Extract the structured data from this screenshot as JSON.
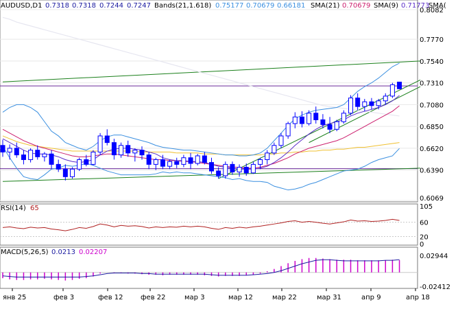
{
  "header": {
    "symbol": "AUDUSD,D1",
    "ohlc": [
      "0.7318",
      "0.7318",
      "0.7244",
      "0.7247"
    ],
    "bands_label": "Bands(21,1.618)",
    "bands_values": [
      "0.75177",
      "0.70679",
      "0.66181"
    ],
    "sma21_label": "SMA(21)",
    "sma21_value": "0.70679",
    "sma9_label": "SMA(9)",
    "sma9_value": "0.71773",
    "sma_extra_label": "SMA("
  },
  "rsi": {
    "label": "RSI(14)",
    "value": "65",
    "levels": [
      "105",
      "60",
      "20",
      "0"
    ]
  },
  "macd": {
    "label": "MACD(5,26,5)",
    "value1": "0.0213",
    "value2": "0.02207",
    "levels": [
      "0.02944",
      "-0.02412"
    ]
  },
  "x_labels": [
    "янв 25",
    "фев 3",
    "фев 12",
    "фев 22",
    "мар 3",
    "мар 12",
    "мар 22",
    "мар 31",
    "апр 9",
    "апр 18"
  ],
  "colors": {
    "bull": "#0000ff",
    "bear": "#0000ff",
    "bands": "#3a8fe0",
    "sma21": "#cc1f6e",
    "sma9": "#5a2dc8",
    "sma_yellow": "#f0c030",
    "sma_white": "#e6e6f0",
    "trend": "#1a7f1a",
    "hline": "#6a2a9a",
    "rsi": "#b02020",
    "macd": "#1a1aa0",
    "macd_hist": "#cc00cc"
  },
  "chart_data": [
    {
      "type": "candlestick",
      "title": "AUDUSD,D1",
      "ylim": [
        0.6069,
        0.8082
      ],
      "y_ticks": [
        0.8082,
        0.777,
        0.754,
        0.731,
        0.708,
        0.685,
        0.662,
        0.639,
        0.6069
      ],
      "ohlc": [
        [
          0.665,
          0.671,
          0.653,
          0.658
        ],
        [
          0.658,
          0.666,
          0.65,
          0.662
        ],
        [
          0.662,
          0.668,
          0.652,
          0.655
        ],
        [
          0.655,
          0.66,
          0.645,
          0.65
        ],
        [
          0.65,
          0.662,
          0.647,
          0.66
        ],
        [
          0.66,
          0.665,
          0.65,
          0.653
        ],
        [
          0.653,
          0.658,
          0.648,
          0.656
        ],
        [
          0.656,
          0.66,
          0.64,
          0.645
        ],
        [
          0.645,
          0.65,
          0.637,
          0.64
        ],
        [
          0.64,
          0.645,
          0.628,
          0.632
        ],
        [
          0.632,
          0.642,
          0.63,
          0.64
        ],
        [
          0.64,
          0.652,
          0.638,
          0.65
        ],
        [
          0.65,
          0.655,
          0.643,
          0.645
        ],
        [
          0.645,
          0.66,
          0.644,
          0.658
        ],
        [
          0.658,
          0.678,
          0.655,
          0.675
        ],
        [
          0.675,
          0.682,
          0.665,
          0.668
        ],
        [
          0.668,
          0.672,
          0.65,
          0.655
        ],
        [
          0.655,
          0.668,
          0.652,
          0.665
        ],
        [
          0.665,
          0.67,
          0.653,
          0.657
        ],
        [
          0.657,
          0.662,
          0.648,
          0.66
        ],
        [
          0.66,
          0.664,
          0.65,
          0.655
        ],
        [
          0.655,
          0.658,
          0.64,
          0.645
        ],
        [
          0.645,
          0.652,
          0.639,
          0.65
        ],
        [
          0.65,
          0.655,
          0.64,
          0.643
        ],
        [
          0.643,
          0.65,
          0.64,
          0.648
        ],
        [
          0.648,
          0.652,
          0.641,
          0.645
        ],
        [
          0.645,
          0.655,
          0.642,
          0.652
        ],
        [
          0.652,
          0.657,
          0.64,
          0.646
        ],
        [
          0.646,
          0.656,
          0.644,
          0.654
        ],
        [
          0.654,
          0.658,
          0.645,
          0.647
        ],
        [
          0.647,
          0.652,
          0.635,
          0.638
        ],
        [
          0.638,
          0.642,
          0.63,
          0.633
        ],
        [
          0.633,
          0.648,
          0.63,
          0.645
        ],
        [
          0.645,
          0.648,
          0.634,
          0.637
        ],
        [
          0.637,
          0.645,
          0.632,
          0.642
        ],
        [
          0.642,
          0.646,
          0.633,
          0.636
        ],
        [
          0.636,
          0.648,
          0.635,
          0.645
        ],
        [
          0.645,
          0.652,
          0.64,
          0.65
        ],
        [
          0.65,
          0.66,
          0.645,
          0.657
        ],
        [
          0.657,
          0.668,
          0.655,
          0.665
        ],
        [
          0.665,
          0.678,
          0.662,
          0.675
        ],
        [
          0.675,
          0.69,
          0.672,
          0.688
        ],
        [
          0.688,
          0.7,
          0.683,
          0.695
        ],
        [
          0.695,
          0.701,
          0.684,
          0.688
        ],
        [
          0.688,
          0.702,
          0.686,
          0.699
        ],
        [
          0.699,
          0.706,
          0.688,
          0.692
        ],
        [
          0.692,
          0.698,
          0.683,
          0.687
        ],
        [
          0.687,
          0.695,
          0.678,
          0.682
        ],
        [
          0.682,
          0.692,
          0.68,
          0.69
        ],
        [
          0.69,
          0.702,
          0.688,
          0.699
        ],
        [
          0.699,
          0.718,
          0.697,
          0.715
        ],
        [
          0.715,
          0.72,
          0.702,
          0.706
        ],
        [
          0.706,
          0.714,
          0.701,
          0.711
        ],
        [
          0.711,
          0.715,
          0.703,
          0.707
        ],
        [
          0.707,
          0.714,
          0.703,
          0.712
        ],
        [
          0.712,
          0.72,
          0.708,
          0.717
        ],
        [
          0.717,
          0.731,
          0.715,
          0.729
        ],
        [
          0.7318,
          0.7318,
          0.7244,
          0.7247
        ]
      ],
      "bb_upper": [
        0.7,
        0.705,
        0.708,
        0.708,
        0.705,
        0.7,
        0.69,
        0.68,
        0.675,
        0.668,
        0.665,
        0.662,
        0.66,
        0.664,
        0.67,
        0.674,
        0.676,
        0.676,
        0.674,
        0.672,
        0.67,
        0.668,
        0.665,
        0.663,
        0.662,
        0.661,
        0.66,
        0.66,
        0.659,
        0.658,
        0.657,
        0.656,
        0.655,
        0.655,
        0.654,
        0.654,
        0.655,
        0.657,
        0.662,
        0.67,
        0.678,
        0.686,
        0.693,
        0.697,
        0.7,
        0.702,
        0.703,
        0.704,
        0.705,
        0.708,
        0.715,
        0.722,
        0.727,
        0.731,
        0.736,
        0.742,
        0.748,
        0.7518
      ],
      "sma21": [
        0.682,
        0.678,
        0.674,
        0.67,
        0.667,
        0.664,
        0.662,
        0.66,
        0.658,
        0.656,
        0.654,
        0.653,
        0.653,
        0.654,
        0.655,
        0.656,
        0.656,
        0.655,
        0.654,
        0.653,
        0.652,
        0.651,
        0.65,
        0.65,
        0.649,
        0.649,
        0.648,
        0.648,
        0.647,
        0.646,
        0.645,
        0.644,
        0.643,
        0.642,
        0.642,
        0.641,
        0.641,
        0.642,
        0.644,
        0.646,
        0.649,
        0.652,
        0.656,
        0.659,
        0.662,
        0.664,
        0.666,
        0.668,
        0.67,
        0.673,
        0.677,
        0.681,
        0.685,
        0.689,
        0.693,
        0.697,
        0.701,
        0.7068
      ],
      "bb_lower": [
        0.664,
        0.652,
        0.641,
        0.632,
        0.63,
        0.629,
        0.634,
        0.64,
        0.641,
        0.644,
        0.643,
        0.644,
        0.646,
        0.644,
        0.641,
        0.638,
        0.636,
        0.634,
        0.634,
        0.634,
        0.634,
        0.634,
        0.635,
        0.637,
        0.636,
        0.637,
        0.636,
        0.636,
        0.635,
        0.634,
        0.633,
        0.632,
        0.631,
        0.629,
        0.63,
        0.628,
        0.627,
        0.627,
        0.626,
        0.622,
        0.62,
        0.618,
        0.619,
        0.621,
        0.624,
        0.626,
        0.629,
        0.632,
        0.635,
        0.638,
        0.639,
        0.64,
        0.643,
        0.647,
        0.65,
        0.652,
        0.654,
        0.6618
      ],
      "sma9": [
        0.672,
        0.668,
        0.664,
        0.66,
        0.657,
        0.656,
        0.656,
        0.655,
        0.653,
        0.65,
        0.648,
        0.647,
        0.648,
        0.65,
        0.655,
        0.659,
        0.661,
        0.662,
        0.662,
        0.661,
        0.66,
        0.658,
        0.656,
        0.652,
        0.65,
        0.649,
        0.649,
        0.648,
        0.648,
        0.647,
        0.645,
        0.643,
        0.642,
        0.641,
        0.64,
        0.64,
        0.64,
        0.641,
        0.643,
        0.647,
        0.652,
        0.658,
        0.665,
        0.671,
        0.677,
        0.682,
        0.686,
        0.688,
        0.69,
        0.692,
        0.696,
        0.699,
        0.701,
        0.703,
        0.705,
        0.708,
        0.712,
        0.7177
      ],
      "sma_yellow": [
        0.675,
        0.672,
        0.669,
        0.667,
        0.665,
        0.664,
        0.663,
        0.662,
        0.661,
        0.66,
        0.659,
        0.659,
        0.659,
        0.659,
        0.659,
        0.659,
        0.659,
        0.659,
        0.659,
        0.659,
        0.658,
        0.658,
        0.658,
        0.658,
        0.658,
        0.657,
        0.657,
        0.657,
        0.657,
        0.656,
        0.656,
        0.656,
        0.655,
        0.655,
        0.655,
        0.655,
        0.655,
        0.655,
        0.656,
        0.656,
        0.657,
        0.657,
        0.658,
        0.658,
        0.659,
        0.659,
        0.66,
        0.66,
        0.661,
        0.661,
        0.662,
        0.663,
        0.663,
        0.664,
        0.665,
        0.666,
        0.667,
        0.668
      ],
      "sma_white": [
        0.8,
        0.798,
        0.795,
        0.793,
        0.791,
        0.789,
        0.787,
        0.785,
        0.783,
        0.781,
        0.779,
        0.777,
        0.775,
        0.773,
        0.771,
        0.769,
        0.767,
        0.765,
        0.763,
        0.761,
        0.759,
        0.757,
        0.755,
        0.753,
        0.751,
        0.749,
        0.747,
        0.745,
        0.743,
        0.741,
        0.739,
        0.737,
        0.735,
        0.733,
        0.731,
        0.729,
        0.727,
        0.725,
        0.723,
        0.721,
        0.719,
        0.717,
        0.715,
        0.713,
        0.711,
        0.709,
        0.707,
        0.706,
        0.705,
        0.704,
        0.703,
        0.702,
        0.701,
        0.7,
        0.699,
        0.698,
        0.697,
        0.696
      ],
      "trendlines": [
        {
          "from": [
            0,
            0.732
          ],
          "to": [
            60,
            0.754
          ]
        },
        {
          "from": [
            0,
            0.627
          ],
          "to": [
            60,
            0.641
          ]
        },
        {
          "from": [
            31,
            0.63
          ],
          "to": [
            60,
            0.734
          ]
        },
        {
          "from": [
            44,
            0.668
          ],
          "to": [
            60,
            0.727
          ]
        }
      ],
      "hlines": [
        0.7277,
        0.6405
      ]
    },
    {
      "type": "line",
      "title": "RSI(14)",
      "ylim": [
        0,
        105
      ],
      "y_ticks": [
        105,
        60,
        20,
        0
      ],
      "values": [
        45,
        47,
        44,
        42,
        46,
        44,
        45,
        41,
        39,
        36,
        40,
        45,
        43,
        48,
        55,
        52,
        47,
        51,
        49,
        50,
        48,
        44,
        47,
        45,
        47,
        46,
        49,
        47,
        49,
        47,
        43,
        40,
        45,
        43,
        46,
        44,
        47,
        49,
        52,
        55,
        58,
        62,
        64,
        60,
        62,
        60,
        57,
        55,
        58,
        61,
        66,
        63,
        64,
        62,
        63,
        65,
        68,
        65
      ]
    },
    {
      "type": "bar",
      "title": "MACD(5,26,5)",
      "ylim": [
        -0.02412,
        0.02944
      ],
      "y_ticks": [
        0.02944,
        -0.02412
      ],
      "signal": [
        -0.006,
        -0.007,
        -0.008,
        -0.008,
        -0.008,
        -0.008,
        -0.008,
        -0.008,
        -0.008,
        -0.008,
        -0.008,
        -0.008,
        -0.007,
        -0.006,
        -0.004,
        -0.002,
        -0.001,
        -0.001,
        -0.001,
        -0.001,
        -0.002,
        -0.002,
        -0.003,
        -0.003,
        -0.003,
        -0.003,
        -0.003,
        -0.003,
        -0.003,
        -0.003,
        -0.004,
        -0.005,
        -0.005,
        -0.005,
        -0.005,
        -0.005,
        -0.004,
        -0.003,
        -0.002,
        0.0,
        0.003,
        0.007,
        0.011,
        0.015,
        0.018,
        0.021,
        0.022,
        0.022,
        0.021,
        0.02,
        0.02,
        0.02,
        0.02,
        0.02,
        0.02,
        0.021,
        0.021,
        0.0221
      ],
      "histogram": [
        -0.01,
        -0.012,
        -0.013,
        -0.013,
        -0.012,
        -0.012,
        -0.011,
        -0.012,
        -0.013,
        -0.014,
        -0.013,
        -0.011,
        -0.01,
        -0.007,
        -0.002,
        0.0,
        -0.001,
        -0.001,
        -0.002,
        -0.002,
        -0.003,
        -0.004,
        -0.004,
        -0.005,
        -0.004,
        -0.004,
        -0.004,
        -0.004,
        -0.004,
        -0.005,
        -0.006,
        -0.007,
        -0.006,
        -0.006,
        -0.006,
        -0.005,
        -0.004,
        -0.002,
        0.002,
        0.006,
        0.011,
        0.016,
        0.02,
        0.023,
        0.025,
        0.025,
        0.024,
        0.023,
        0.022,
        0.022,
        0.022,
        0.021,
        0.021,
        0.021,
        0.021,
        0.021,
        0.022,
        0.0213
      ]
    }
  ]
}
